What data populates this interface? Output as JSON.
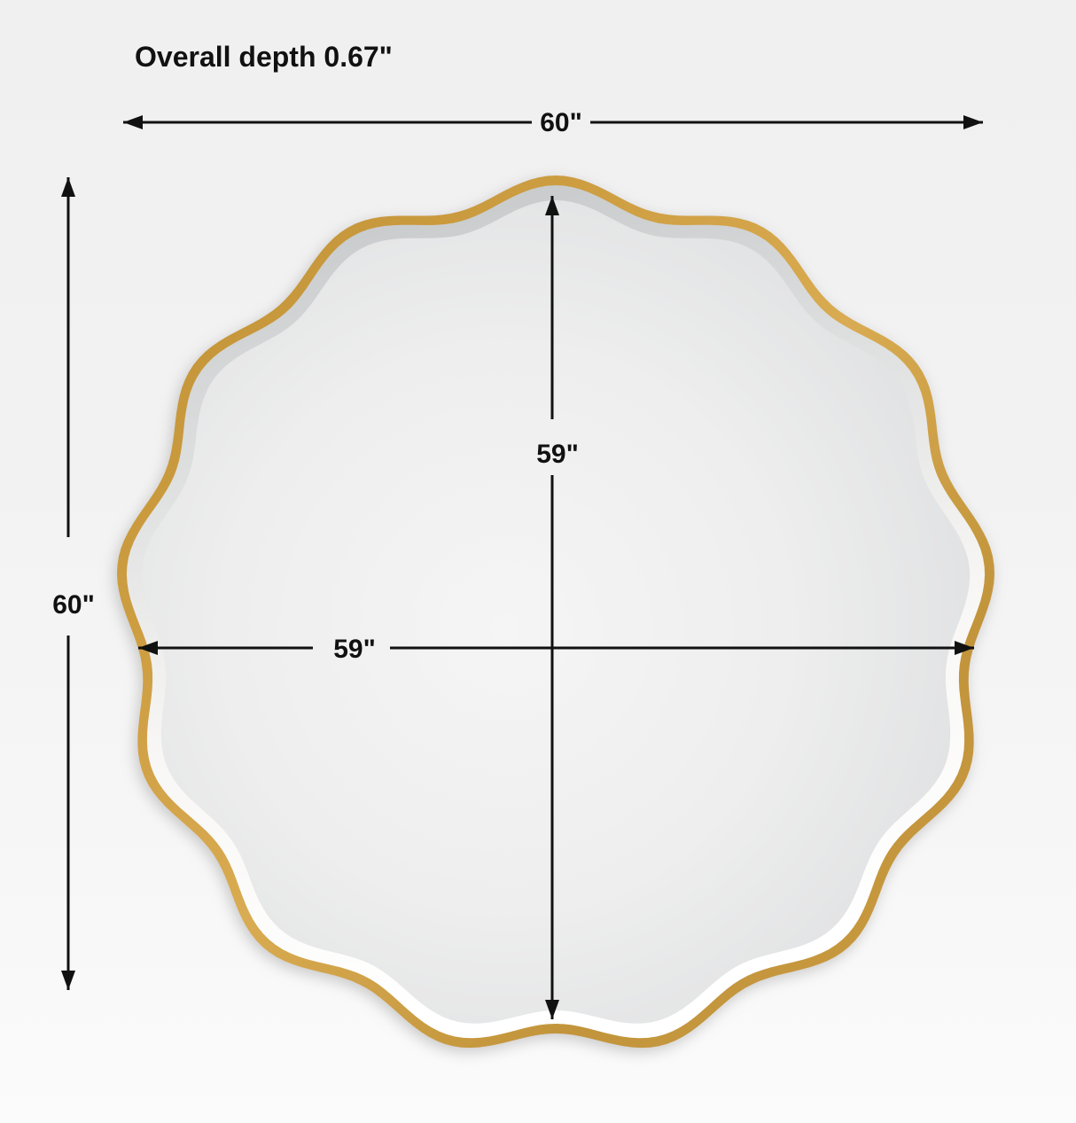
{
  "diagram": {
    "type": "product-dimension-diagram",
    "subject": "scalloped-round-wall-mirror",
    "labels": {
      "overall_depth": "Overall depth 0.67\"",
      "outer_width": "60\"",
      "outer_height": "60\"",
      "inner_width": "59\"",
      "inner_height": "59\""
    },
    "dimensions": {
      "overall_depth_in": 0.67,
      "outer_width_in": 60,
      "outer_height_in": 60,
      "inner_width_in": 59,
      "inner_height_in": 59
    },
    "colors": {
      "background": "#f2f2f2",
      "frame_gold": "#c79b40",
      "bevel_dark": "#c1c4c6",
      "bevel_light": "#ffffff",
      "mirror_face_light": "#f5f5f5",
      "mirror_face_dark": "#cfd2d3",
      "dimension_line": "#111111"
    }
  }
}
